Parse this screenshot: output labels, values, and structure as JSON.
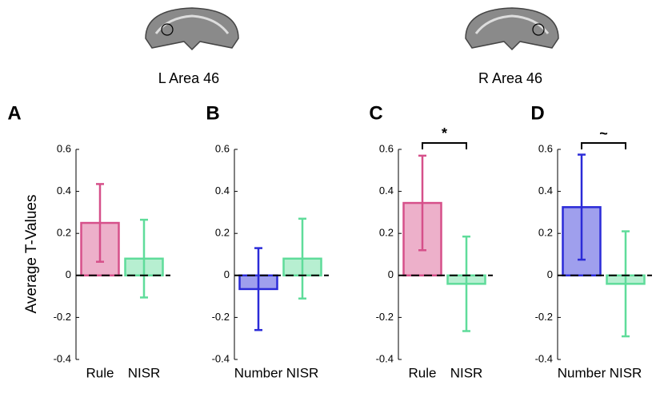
{
  "group_labels": [
    "L Area 46",
    "R Area 46"
  ],
  "chart_data": [
    {
      "type": "bar",
      "panel": "A",
      "ylabel": "Average T-Values",
      "categories": [
        "Rule",
        "NISR"
      ],
      "values": [
        0.25,
        0.08
      ],
      "errors": [
        0.185,
        0.185
      ],
      "colors": [
        "#d6508a",
        "#5fdc9a"
      ],
      "ylim": [
        -0.4,
        0.6
      ],
      "yticks": [
        -0.4,
        -0.2,
        0,
        0.2,
        0.4,
        0.6
      ]
    },
    {
      "type": "bar",
      "panel": "B",
      "categories": [
        "Number",
        "NISR"
      ],
      "values": [
        -0.065,
        0.08
      ],
      "errors": [
        0.195,
        0.19
      ],
      "colors": [
        "#2b2bd8",
        "#5fdc9a"
      ],
      "ylim": [
        -0.4,
        0.6
      ],
      "yticks": [
        -0.4,
        -0.2,
        0,
        0.2,
        0.4,
        0.6
      ]
    },
    {
      "type": "bar",
      "panel": "C",
      "categories": [
        "Rule",
        "NISR"
      ],
      "values": [
        0.345,
        -0.04
      ],
      "errors": [
        0.225,
        0.225
      ],
      "colors": [
        "#d6508a",
        "#5fdc9a"
      ],
      "ylim": [
        -0.4,
        0.6
      ],
      "yticks": [
        -0.4,
        -0.2,
        0,
        0.2,
        0.4,
        0.6
      ],
      "annotation": "*"
    },
    {
      "type": "bar",
      "panel": "D",
      "categories": [
        "Number",
        "NISR"
      ],
      "values": [
        0.325,
        -0.04
      ],
      "errors": [
        0.25,
        0.25
      ],
      "colors": [
        "#2b2bd8",
        "#5fdc9a"
      ],
      "ylim": [
        -0.4,
        0.6
      ],
      "yticks": [
        -0.4,
        -0.2,
        0,
        0.2,
        0.4,
        0.6
      ],
      "annotation": "~"
    }
  ]
}
